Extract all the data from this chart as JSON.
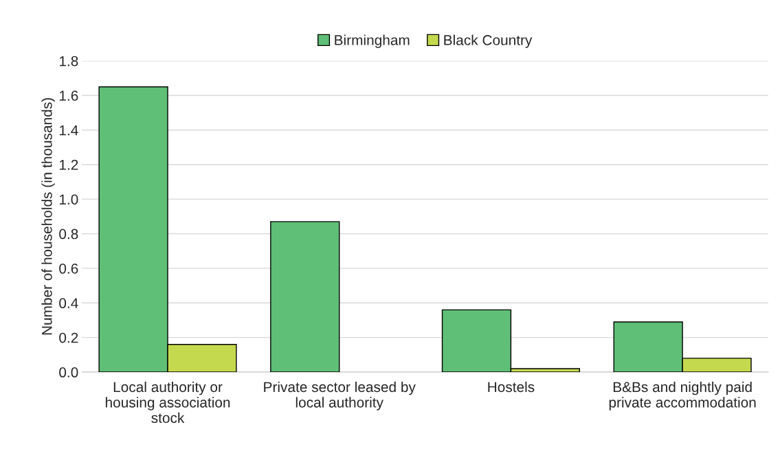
{
  "chart_data": {
    "type": "bar",
    "ylabel": "Number of households (in thousands)",
    "categories": [
      "Local authority or\nhousing association\nstock",
      "Private sector leased by\nlocal authority",
      "Hostels",
      "B&Bs and nightly paid\nprivate accommodation"
    ],
    "series": [
      {
        "name": "Birmingham",
        "color": "#5fbf76",
        "values": [
          1.65,
          0.87,
          0.36,
          0.29
        ]
      },
      {
        "name": "Black Country",
        "color": "#c5d94e",
        "values": [
          0.16,
          null,
          0.02,
          0.08
        ]
      }
    ],
    "ylim": [
      0,
      1.8
    ],
    "yticks": [
      {
        "value": 0,
        "label": "0.0"
      },
      0.2,
      0.4,
      0.6,
      0.8,
      {
        "value": 1,
        "label": "1.0"
      },
      1.2,
      1.4,
      1.6,
      1.8
    ],
    "grid": "y",
    "legend": "top"
  }
}
